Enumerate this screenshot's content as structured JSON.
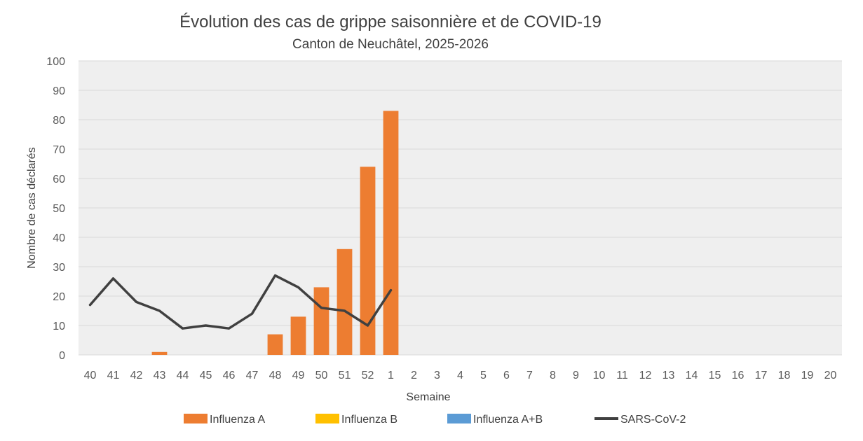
{
  "chart_data": {
    "type": "bar",
    "title": "Évolution des cas de grippe saisonnière et de COVID-19",
    "subtitle": "Canton de Neuchâtel, 2025-2026",
    "xlabel": "Semaine",
    "ylabel": "Nombre de cas déclarés",
    "ylim": [
      0,
      100
    ],
    "yticks": [
      0,
      10,
      20,
      30,
      40,
      50,
      60,
      70,
      80,
      90,
      100
    ],
    "grid": true,
    "legend_position": "bottom",
    "categories": [
      "40",
      "41",
      "42",
      "43",
      "44",
      "45",
      "46",
      "47",
      "48",
      "49",
      "50",
      "51",
      "52",
      "1",
      "2",
      "3",
      "4",
      "5",
      "6",
      "7",
      "8",
      "9",
      "10",
      "11",
      "12",
      "13",
      "14",
      "15",
      "16",
      "17",
      "18",
      "19",
      "20"
    ],
    "series": [
      {
        "name": "Influenza A",
        "type": "bar",
        "color": "#ED7D31",
        "values": [
          0,
          0,
          0,
          1,
          0,
          0,
          0,
          0,
          7,
          13,
          23,
          36,
          64,
          83,
          null,
          null,
          null,
          null,
          null,
          null,
          null,
          null,
          null,
          null,
          null,
          null,
          null,
          null,
          null,
          null,
          null,
          null,
          null
        ]
      },
      {
        "name": "Influenza B",
        "type": "bar",
        "color": "#FFC000",
        "values": [
          0,
          0,
          0,
          0,
          0,
          0,
          0,
          0,
          0,
          0,
          0,
          0,
          0,
          0,
          null,
          null,
          null,
          null,
          null,
          null,
          null,
          null,
          null,
          null,
          null,
          null,
          null,
          null,
          null,
          null,
          null,
          null,
          null
        ]
      },
      {
        "name": "Influenza A+B",
        "type": "bar",
        "color": "#5B9BD5",
        "values": [
          0,
          0,
          0,
          0,
          0,
          0,
          0,
          0,
          0,
          0,
          0,
          0,
          0,
          0,
          null,
          null,
          null,
          null,
          null,
          null,
          null,
          null,
          null,
          null,
          null,
          null,
          null,
          null,
          null,
          null,
          null,
          null,
          null
        ]
      },
      {
        "name": "SARS-CoV-2",
        "type": "line",
        "color": "#404040",
        "values": [
          17,
          26,
          18,
          15,
          9,
          10,
          9,
          14,
          27,
          23,
          16,
          15,
          10,
          22,
          null,
          null,
          null,
          null,
          null,
          null,
          null,
          null,
          null,
          null,
          null,
          null,
          null,
          null,
          null,
          null,
          null,
          null,
          null
        ]
      }
    ],
    "colors": {
      "plot_background": "#EFEFEF",
      "gridline": "#D9D9D9"
    }
  }
}
